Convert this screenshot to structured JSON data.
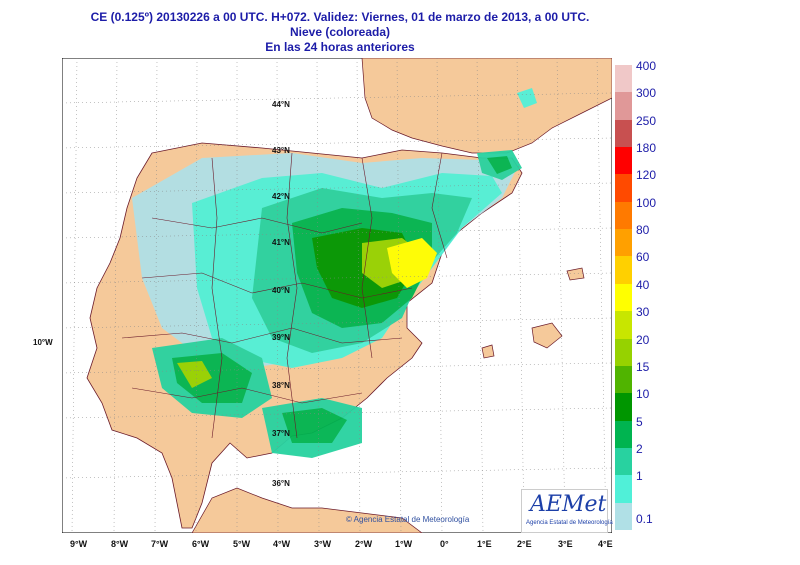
{
  "header": {
    "line1": "CE (0.125º) 20130226 a 00 UTC.  H+072. Validez: Viernes, 01 de marzo de 2013,  a  00 UTC.",
    "line2": "Nieve (coloreada)",
    "line3": "En las 24 horas anteriores"
  },
  "map": {
    "lat_labels": [
      "44°N",
      "43°N",
      "42°N",
      "41°N",
      "40°N",
      "39°N",
      "38°N",
      "37°N",
      "36°N"
    ],
    "left_label": "10°W",
    "lon_labels": [
      "9°W",
      "8°W",
      "7°W",
      "6°W",
      "5°W",
      "4°W",
      "3°W",
      "2°W",
      "1°W",
      "0°",
      "1°E",
      "2°E",
      "3°E",
      "4°E"
    ],
    "colors": {
      "sea": "#ffffff",
      "land": "#f5c99a",
      "border": "#6a1a2a",
      "grid": "#888888"
    }
  },
  "legend": {
    "items": [
      {
        "label": "400",
        "color": "#f0c8c8"
      },
      {
        "label": "300",
        "color": "#e09898"
      },
      {
        "label": "250",
        "color": "#c85050"
      },
      {
        "label": "180",
        "color": "#ff0000"
      },
      {
        "label": "120",
        "color": "#ff4a00"
      },
      {
        "label": "100",
        "color": "#ff7a00"
      },
      {
        "label": "80",
        "color": "#ffa000"
      },
      {
        "label": "60",
        "color": "#ffd000"
      },
      {
        "label": "40",
        "color": "#ffff00"
      },
      {
        "label": "30",
        "color": "#c8e600"
      },
      {
        "label": "20",
        "color": "#96d200"
      },
      {
        "label": "15",
        "color": "#50b400"
      },
      {
        "label": "10",
        "color": "#009600"
      },
      {
        "label": "5",
        "color": "#00b450"
      },
      {
        "label": "2",
        "color": "#28d2a0"
      },
      {
        "label": "1",
        "color": "#50f0d8"
      },
      {
        "label": "0.1",
        "color": "#b0e0e6"
      }
    ]
  },
  "footer": {
    "copyright": "© Agencia Estatal de Meteorología",
    "logo_text": "AEMet",
    "logo_subtitle": "Agencia Estatal de Meteorología"
  }
}
